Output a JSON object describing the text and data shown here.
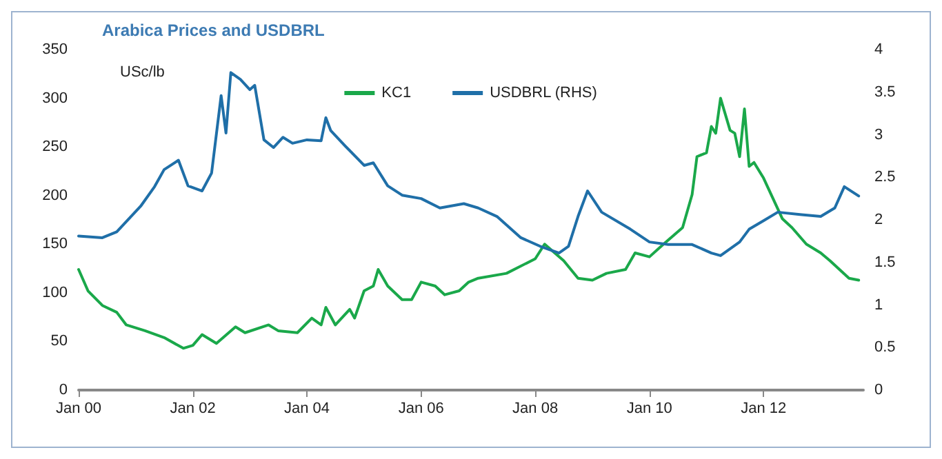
{
  "chart_data": {
    "type": "line",
    "title": "Arabica Prices and USDBRL",
    "ylabel": "USc/lb",
    "xlim": [
      "2000-01",
      "2013-10"
    ],
    "xticks": [
      {
        "value": "2000-01",
        "label": "Jan 00"
      },
      {
        "value": "2002-01",
        "label": "Jan 02"
      },
      {
        "value": "2004-01",
        "label": "Jan 04"
      },
      {
        "value": "2006-01",
        "label": "Jan 06"
      },
      {
        "value": "2008-01",
        "label": "Jan 08"
      },
      {
        "value": "2010-01",
        "label": "Jan 10"
      },
      {
        "value": "2012-01",
        "label": "Jan 12"
      }
    ],
    "ylim": [
      0,
      350
    ],
    "yticks": [
      0,
      50,
      100,
      150,
      200,
      250,
      300,
      350
    ],
    "y2lim": [
      0,
      4
    ],
    "y2ticks": [
      0,
      0.5,
      1,
      1.5,
      2,
      2.5,
      3,
      3.5,
      4
    ],
    "grid": false,
    "legend": "top",
    "marker": "none",
    "line_style": "solid",
    "series": [
      {
        "name": "KC1",
        "color": "#1aa84a",
        "x": [
          "2000-01",
          "2000-03",
          "2000-06",
          "2000-09",
          "2000-11",
          "2001-03",
          "2001-07",
          "2001-11",
          "2002-01",
          "2002-03",
          "2002-06",
          "2002-10",
          "2002-12",
          "2003-05",
          "2003-07",
          "2003-11",
          "2004-02",
          "2004-04",
          "2004-05",
          "2004-07",
          "2004-10",
          "2004-11",
          "2005-01",
          "2005-03",
          "2005-04",
          "2005-06",
          "2005-09",
          "2005-11",
          "2006-01",
          "2006-04",
          "2006-06",
          "2006-09",
          "2006-11",
          "2007-01",
          "2007-07",
          "2008-01",
          "2008-03",
          "2008-07",
          "2008-10",
          "2009-01",
          "2009-04",
          "2009-08",
          "2009-10",
          "2010-01",
          "2010-04",
          "2010-08",
          "2010-10",
          "2010-11",
          "2011-01",
          "2011-02",
          "2011-03",
          "2011-04",
          "2011-06",
          "2011-07",
          "2011-08",
          "2011-09",
          "2011-10",
          "2011-11",
          "2012-01",
          "2012-05",
          "2012-07",
          "2012-10",
          "2013-01",
          "2013-03",
          "2013-05",
          "2013-07",
          "2013-09"
        ],
        "values": [
          124,
          102,
          87,
          80,
          67,
          61,
          54,
          43,
          46,
          57,
          48,
          65,
          59,
          67,
          61,
          59,
          74,
          67,
          85,
          67,
          83,
          74,
          102,
          107,
          124,
          107,
          93,
          93,
          111,
          107,
          98,
          102,
          111,
          115,
          120,
          135,
          150,
          133,
          115,
          113,
          120,
          124,
          141,
          137,
          150,
          167,
          201,
          240,
          244,
          271,
          264,
          300,
          267,
          264,
          240,
          289,
          230,
          234,
          218,
          176,
          167,
          150,
          141,
          133,
          124,
          115,
          113
        ]
      },
      {
        "name": "USDBRL (RHS)",
        "color": "#1f6fa8",
        "axis": "y2",
        "x": [
          "2000-01",
          "2000-06",
          "2000-09",
          "2001-02",
          "2001-05",
          "2001-07",
          "2001-10",
          "2001-12",
          "2002-03",
          "2002-05",
          "2002-07",
          "2002-08",
          "2002-09",
          "2002-11",
          "2003-01",
          "2003-02",
          "2003-04",
          "2003-06",
          "2003-08",
          "2003-10",
          "2004-01",
          "2004-04",
          "2004-05",
          "2004-06",
          "2004-09",
          "2005-01",
          "2005-03",
          "2005-06",
          "2005-09",
          "2006-01",
          "2006-05",
          "2006-10",
          "2007-01",
          "2007-05",
          "2007-10",
          "2008-02",
          "2008-06",
          "2008-08",
          "2008-10",
          "2008-12",
          "2009-03",
          "2009-09",
          "2010-01",
          "2010-05",
          "2010-10",
          "2011-02",
          "2011-04",
          "2011-08",
          "2011-10",
          "2012-01",
          "2012-04",
          "2012-09",
          "2013-01",
          "2013-04",
          "2013-06",
          "2013-09"
        ],
        "values": [
          1.81,
          1.79,
          1.86,
          2.16,
          2.39,
          2.59,
          2.7,
          2.4,
          2.34,
          2.55,
          3.46,
          3.02,
          3.73,
          3.65,
          3.53,
          3.58,
          2.94,
          2.85,
          2.97,
          2.9,
          2.94,
          2.93,
          3.2,
          3.05,
          2.87,
          2.64,
          2.67,
          2.4,
          2.29,
          2.25,
          2.14,
          2.19,
          2.14,
          2.04,
          1.79,
          1.69,
          1.61,
          1.69,
          2.04,
          2.34,
          2.09,
          1.89,
          1.74,
          1.71,
          1.71,
          1.61,
          1.58,
          1.74,
          1.89,
          1.99,
          2.09,
          2.06,
          2.04,
          2.14,
          2.39,
          2.28
        ]
      }
    ]
  }
}
